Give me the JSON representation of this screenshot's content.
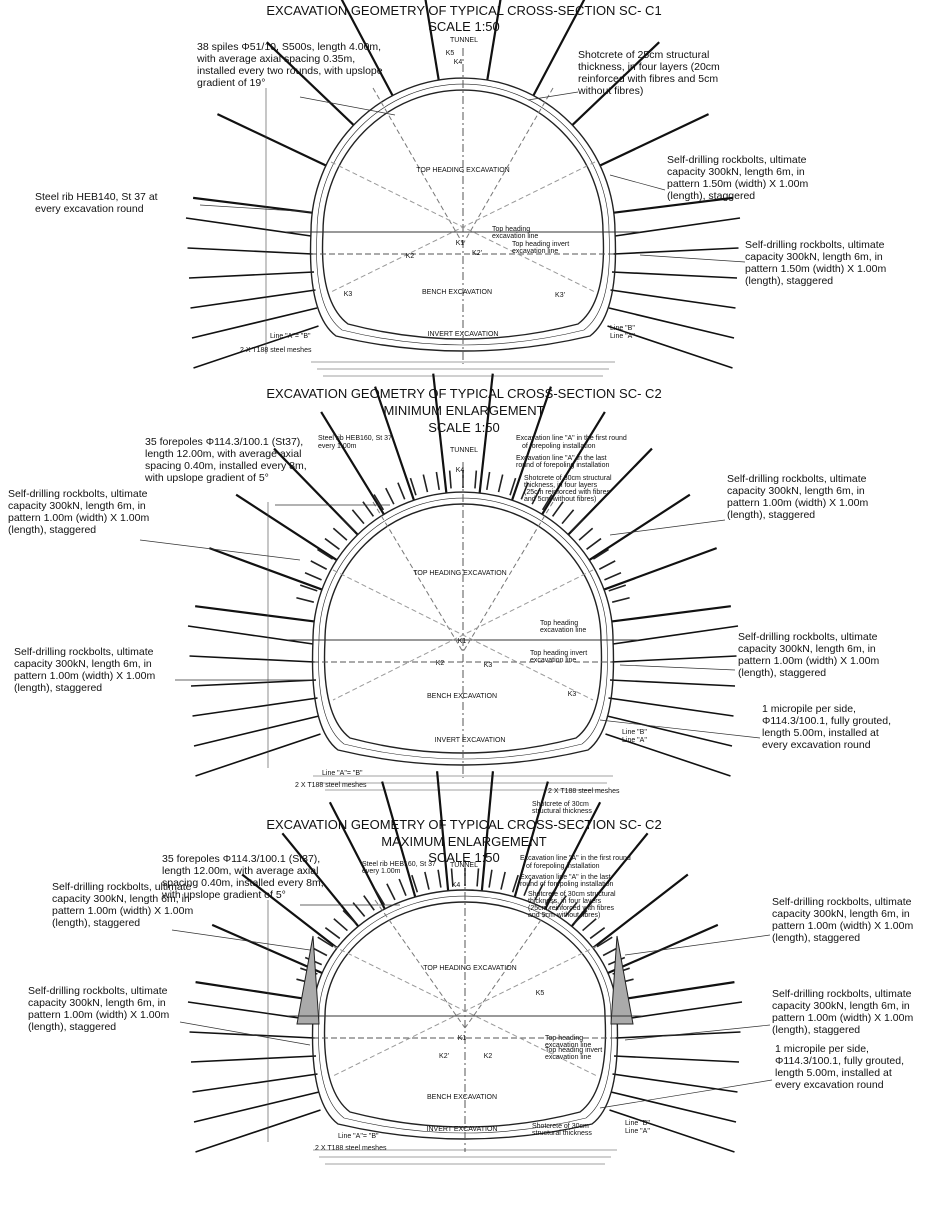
{
  "sections": [
    {
      "titles": [
        "EXCAVATION GEOMETRY OF TYPICAL CROSS-SECTION SC- C1",
        "SCALE 1:50"
      ],
      "notes": [
        {
          "lines": [
            "38 spiles Φ51/10, S500s, length 4.00m,",
            "with average axial spacing 0.35m,",
            "installed every two rounds, with upslope",
            "gradient of 19°"
          ]
        },
        {
          "lines": [
            "Shotcrete of 25cm structural",
            "thickness, in four layers (20cm",
            "reinforced with fibres and 5cm",
            "without fibres)"
          ]
        },
        {
          "lines": [
            "Self-drilling rockbolts, ultimate",
            "capacity 300kN, length 6m, in",
            "pattern 1.50m (width) X 1.00m",
            "(length), staggered"
          ]
        },
        {
          "lines": [
            "Steel rib HEB140, St 37 at",
            "every excavation round"
          ]
        },
        {
          "lines": [
            "Self-drilling rockbolts, ultimate",
            "capacity 300kN, length 6m, in",
            "pattern 1.50m (width) X 1.00m",
            "(length), staggered"
          ]
        }
      ],
      "labels": [
        "TUNNEL",
        "K5",
        "K4",
        "TOP HEADING EXCAVATION",
        "K1",
        "K2",
        "K2'",
        "Top heading",
        "excavation line",
        "Top heading invert",
        "excavation line",
        "BENCH EXCAVATION",
        "K3",
        "K3'",
        "INVERT EXCAVATION",
        "Line \"A\"= \"B\"",
        "2 X T188 steel meshes",
        "Line \"B\"",
        "Line \"A\""
      ]
    },
    {
      "titles": [
        "EXCAVATION GEOMETRY OF TYPICAL CROSS-SECTION SC- C2",
        "MINIMUM ENLARGEMENT",
        "SCALE 1:50"
      ],
      "notes": [
        {
          "lines": [
            "35 forepoles Φ114.3/100.1 (St37),",
            "length 12.00m, with average axial",
            "spacing 0.40m, installed every 8m,",
            "with upslope gradient of 5°"
          ]
        },
        {
          "lines": [
            "Self-drilling rockbolts, ultimate",
            "capacity 300kN, length 6m, in",
            "pattern 1.00m (width) X 1.00m",
            "(length), staggered"
          ]
        },
        {
          "lines": [
            "Self-drilling rockbolts, ultimate",
            "capacity 300kN, length 6m, in",
            "pattern 1.00m (width) X 1.00m",
            "(length), staggered"
          ]
        },
        {
          "lines": [
            "Self-drilling rockbolts, ultimate",
            "capacity 300kN, length 6m, in",
            "pattern 1.00m (width) X 1.00m",
            "(length), staggered"
          ]
        },
        {
          "lines": [
            "Self-drilling rockbolts, ultimate",
            "capacity 300kN, length 6m, in",
            "pattern 1.00m (width) X 1.00m",
            "(length), staggered"
          ]
        },
        {
          "lines": [
            "1 micropile per side,",
            "Φ114.3/100.1, fully grouted,",
            "length 5.00m, installed at",
            "every excavation round"
          ]
        }
      ],
      "labels": [
        "Steel rib HEB160, St 37",
        "every 1.00m",
        "TUNNEL",
        "K4",
        "Excavation line \"A\" in the first round",
        "of forepoling installation",
        "Excavation line \"A\" in the last",
        "round of forepoling installation",
        "Shotcrete of 30cm structural",
        "thickness, in four layers",
        "(25cm reinforced with fibres",
        "and 5cm without fibres)",
        "TOP HEADING EXCAVATION",
        "Top heading",
        "excavation line",
        "K1",
        "K2",
        "K3",
        "Top heading invert",
        "excavation line",
        "BENCH EXCAVATION",
        "K3",
        "INVERT EXCAVATION",
        "Line \"B\"",
        "Line \"A\"",
        "Line \"A\"= \"B\"",
        "2 X T188 steel meshes",
        "2 X T188 steel meshes",
        "Shotcrete of 30cm",
        "structural thickness"
      ]
    },
    {
      "titles": [
        "EXCAVATION GEOMETRY OF TYPICAL CROSS-SECTION SC- C2",
        "MAXIMUM ENLARGEMENT",
        "SCALE 1:50"
      ],
      "notes": [
        {
          "lines": [
            "35 forepoles Φ114.3/100.1 (St37),",
            "length 12.00m, with average axial",
            "spacing 0.40m, installed every 8m,",
            "with upslope gradient of 5°"
          ]
        },
        {
          "lines": [
            "Self-drilling rockbolts, ultimate",
            "capacity 300kN, length 6m, in",
            "pattern 1.00m (width) X 1.00m",
            "(length), staggered"
          ]
        },
        {
          "lines": [
            "Self-drilling rockbolts, ultimate",
            "capacity 300kN, length 6m, in",
            "pattern 1.00m (width) X 1.00m",
            "(length), staggered"
          ]
        },
        {
          "lines": [
            "Self-drilling rockbolts, ultimate",
            "capacity 300kN, length 6m, in",
            "pattern 1.00m (width) X 1.00m",
            "(length), staggered"
          ]
        },
        {
          "lines": [
            "Self-drilling rockbolts, ultimate",
            "capacity 300kN, length 6m, in",
            "pattern 1.00m (width) X 1.00m",
            "(length), staggered"
          ]
        },
        {
          "lines": [
            "1 micropile per side,",
            "Φ114.3/100.1, fully grouted,",
            "length 5.00m, installed at",
            "every excavation round"
          ]
        }
      ],
      "labels": [
        "Steel rib HEB160, St 37",
        "every 1.00m",
        "TUNNEL",
        "K4",
        "Excavation line \"A\" in the first round",
        "of forepoling installation",
        "Excavation line \"A\" in the last",
        "round of forepoling installation",
        "Shotcrete of 30cm structural",
        "thickness, in four layers",
        "(25cm reinforced with fibres",
        "and 5cm without fibres)",
        "TOP HEADING EXCAVATION",
        "K5",
        "Top heading",
        "excavation line",
        "K1",
        "K2'",
        "K2",
        "Top heading invert",
        "excavation line",
        "BENCH EXCAVATION",
        "INVERT EXCAVATION",
        "Line \"B\"",
        "Line \"A\"",
        "Line \"A\"= \"B\"",
        "2 X T188 steel meshes",
        "Shotcrete of 30cm",
        "structural thickness"
      ]
    }
  ]
}
